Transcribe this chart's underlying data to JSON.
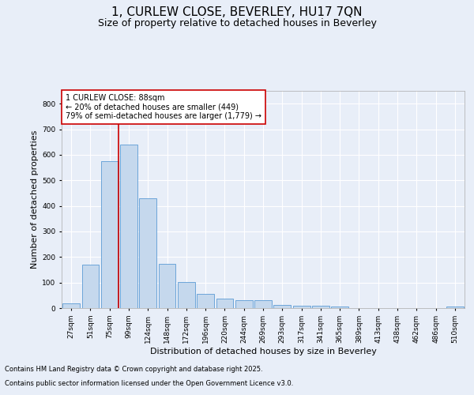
{
  "title": "1, CURLEW CLOSE, BEVERLEY, HU17 7QN",
  "subtitle": "Size of property relative to detached houses in Beverley",
  "xlabel": "Distribution of detached houses by size in Beverley",
  "ylabel": "Number of detached properties",
  "categories": [
    "27sqm",
    "51sqm",
    "75sqm",
    "99sqm",
    "124sqm",
    "148sqm",
    "172sqm",
    "196sqm",
    "220sqm",
    "244sqm",
    "269sqm",
    "293sqm",
    "317sqm",
    "341sqm",
    "365sqm",
    "389sqm",
    "413sqm",
    "438sqm",
    "462sqm",
    "486sqm",
    "510sqm"
  ],
  "values": [
    18,
    170,
    575,
    640,
    430,
    172,
    103,
    55,
    38,
    30,
    30,
    13,
    8,
    8,
    5,
    0,
    0,
    0,
    0,
    0,
    5
  ],
  "bar_color": "#c5d8ed",
  "bar_edge_color": "#5b9bd5",
  "vline_color": "#cc0000",
  "annotation_text": "1 CURLEW CLOSE: 88sqm\n← 20% of detached houses are smaller (449)\n79% of semi-detached houses are larger (1,779) →",
  "annotation_box_color": "#ffffff",
  "annotation_box_edge": "#cc0000",
  "ylim": [
    0,
    850
  ],
  "yticks": [
    0,
    100,
    200,
    300,
    400,
    500,
    600,
    700,
    800
  ],
  "background_color": "#e8eef8",
  "plot_bg_color": "#e8eef8",
  "footer_line1": "Contains HM Land Registry data © Crown copyright and database right 2025.",
  "footer_line2": "Contains public sector information licensed under the Open Government Licence v3.0.",
  "title_fontsize": 11,
  "subtitle_fontsize": 9,
  "xlabel_fontsize": 8,
  "ylabel_fontsize": 8,
  "tick_fontsize": 6.5,
  "annotation_fontsize": 7,
  "footer_fontsize": 6
}
